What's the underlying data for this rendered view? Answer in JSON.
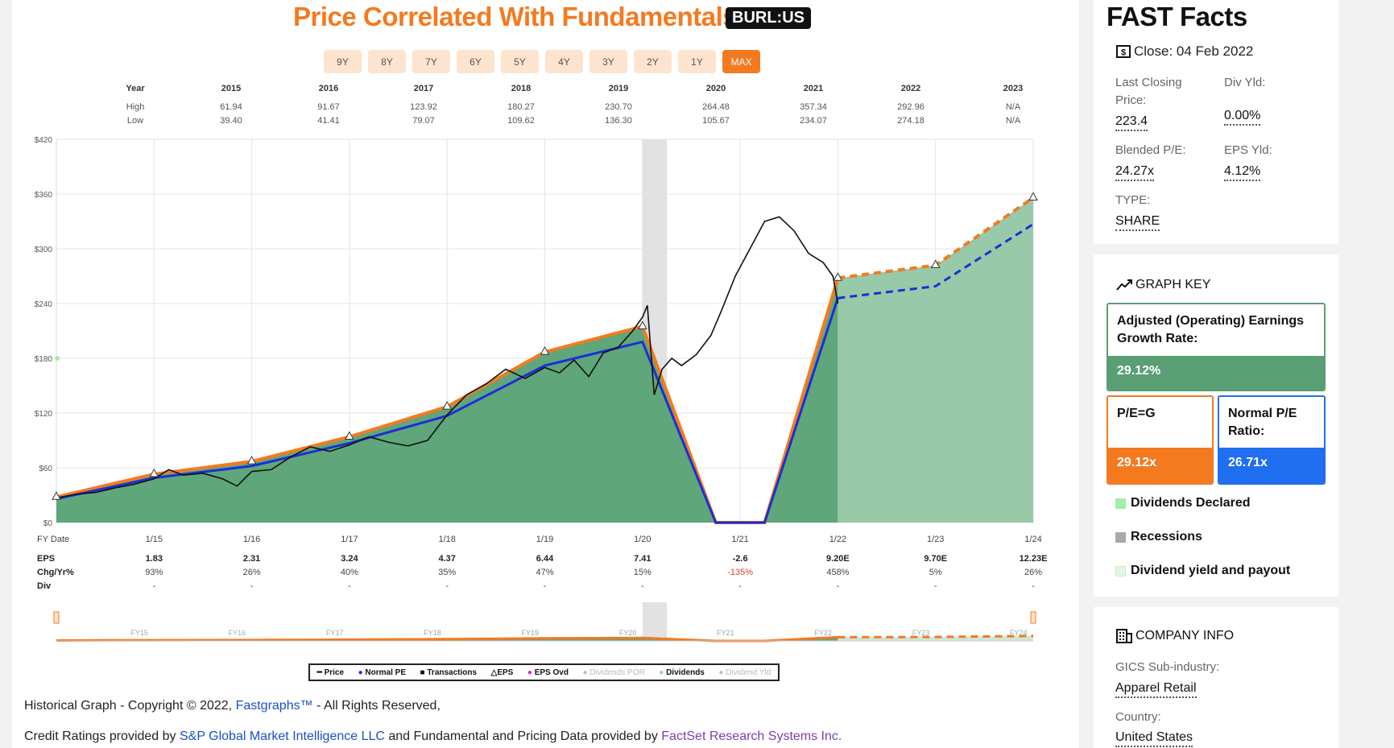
{
  "header": {
    "title": "Price Correlated With Fundamentals",
    "ticker": "BURL:US",
    "ranges": [
      "9Y",
      "8Y",
      "7Y",
      "6Y",
      "5Y",
      "4Y",
      "3Y",
      "2Y",
      "1Y",
      "MAX"
    ],
    "active_range": "MAX"
  },
  "year_table": {
    "head_label": "Year",
    "high_label": "High",
    "low_label": "Low",
    "years": [
      "2015",
      "2016",
      "2017",
      "2018",
      "2019",
      "2020",
      "2021",
      "2022",
      "2023"
    ],
    "high": [
      "61.94",
      "91.67",
      "123.92",
      "180.27",
      "230.70",
      "264.48",
      "357.34",
      "292.96",
      "N/A"
    ],
    "low": [
      "39.40",
      "41.41",
      "79.07",
      "109.62",
      "136.30",
      "105.67",
      "234.07",
      "274.18",
      "N/A"
    ]
  },
  "bottom_table": {
    "date_label": "FY Date",
    "eps_label": "EPS",
    "chg_label": "Chg/Yr%",
    "div_label": "Div",
    "dates": [
      "1/15",
      "1/16",
      "1/17",
      "1/18",
      "1/19",
      "1/20",
      "1/21",
      "1/22",
      "1/23",
      "1/24"
    ],
    "eps": [
      "1.83",
      "2.31",
      "3.24",
      "4.37",
      "6.44",
      "7.41",
      "-2.6",
      "9.20E",
      "9.70E",
      "12.23E"
    ],
    "chg": [
      "93%",
      "26%",
      "40%",
      "35%",
      "47%",
      "15%",
      "-135%",
      "458%",
      "5%",
      "26%"
    ],
    "div": [
      "-",
      "-",
      "-",
      "-",
      "-",
      "-",
      "-",
      "-",
      "-",
      "-"
    ]
  },
  "overview_labels": [
    "FY15",
    "FY16",
    "FY17",
    "FY18",
    "FY19",
    "FY20",
    "FY21",
    "FY22",
    "FY23",
    "FY24"
  ],
  "chart_data": {
    "type": "line",
    "yaxis_ticks": [
      "$0",
      "$60",
      "$120",
      "$180",
      "$240",
      "$300",
      "$360",
      "$420"
    ],
    "ylim": [
      0,
      420
    ],
    "xlim": [
      2014.0,
      2024.0
    ],
    "recession": [
      2020.0,
      2020.25
    ],
    "series": [
      {
        "name": "Normal PE",
        "color": "#1a2fd8",
        "x": [
          2014.0,
          2015.0,
          2016.0,
          2017.0,
          2018.0,
          2019.0,
          2020.0,
          2020.75,
          2021.25,
          2022.0,
          2023.0,
          2024.0
        ],
        "y": [
          26,
          49,
          62,
          87,
          117,
          172,
          198,
          0,
          0,
          246,
          259,
          327
        ],
        "estimate_from_index": 9
      },
      {
        "name": "EPS",
        "color": "#f47a20",
        "x": [
          2014.0,
          2015.0,
          2016.0,
          2017.0,
          2018.0,
          2019.0,
          2020.0,
          2020.75,
          2021.25,
          2022.0,
          2023.0,
          2024.0
        ],
        "y": [
          28,
          53,
          67,
          94,
          127,
          187,
          215,
          0,
          0,
          268,
          282,
          356
        ],
        "estimate_from_index": 9
      },
      {
        "name": "Price",
        "color": "#111111",
        "x": [
          2014.0,
          2014.2,
          2014.4,
          2014.6,
          2014.8,
          2015.0,
          2015.15,
          2015.3,
          2015.5,
          2015.7,
          2015.85,
          2016.0,
          2016.2,
          2016.4,
          2016.6,
          2016.8,
          2017.0,
          2017.2,
          2017.4,
          2017.6,
          2017.8,
          2018.0,
          2018.2,
          2018.4,
          2018.6,
          2018.8,
          2019.0,
          2019.15,
          2019.3,
          2019.45,
          2019.6,
          2019.75,
          2019.9,
          2020.0,
          2020.05,
          2020.12,
          2020.2,
          2020.3,
          2020.4,
          2020.55,
          2020.7,
          2020.8,
          2020.95,
          2021.1,
          2021.25,
          2021.4,
          2021.55,
          2021.7,
          2021.85,
          2021.95,
          2022.0
        ],
        "y": [
          27,
          31,
          33,
          38,
          42,
          48,
          58,
          52,
          54,
          48,
          40,
          56,
          58,
          72,
          83,
          78,
          85,
          94,
          88,
          84,
          90,
          118,
          140,
          152,
          168,
          158,
          170,
          164,
          178,
          160,
          186,
          192,
          210,
          225,
          238,
          140,
          168,
          180,
          172,
          184,
          205,
          230,
          270,
          300,
          330,
          335,
          320,
          295,
          285,
          270,
          240
        ]
      }
    ],
    "estimate_region_from": 2022.0,
    "legend": [
      "Price",
      "Normal PE",
      "Transactions",
      "EPS",
      "EPS Ovd",
      "Dividends POR",
      "Dividends",
      "Dividend Yld"
    ]
  },
  "legend_items": [
    "Price",
    "Normal PE",
    "Transactions",
    "EPS",
    "EPS Ovd",
    "Dividends POR",
    "Dividends",
    "Dividend Yld"
  ],
  "footer": {
    "line1_pre": "Historical Graph - Copyright © 2022, ",
    "line1_link": "Fastgraphs™",
    "line1_post": " - All Rights Reserved,",
    "line2_pre": "Credit Ratings provided by ",
    "line2_link1": "S&P Global Market Intelligence LLC",
    "line2_mid": " and Fundamental and Pricing Data provided by ",
    "line2_link2": "FactSet Research Systems Inc."
  },
  "fast_facts": {
    "title": "FAST Facts",
    "close": "Close: 04 Feb 2022",
    "last_price_label": "Last Closing Price:",
    "last_price": "223.4",
    "div_yld_label": "Div Yld:",
    "div_yld": "0.00%",
    "blended_pe_label": "Blended P/E:",
    "blended_pe": "24.27x",
    "eps_yld_label": "EPS Yld:",
    "eps_yld": "4.12%",
    "type_label": "TYPE:",
    "type": "SHARE"
  },
  "graph_key": {
    "title": "GRAPH KEY",
    "growth_label": "Adjusted (Operating) Earnings Growth Rate:",
    "growth_value": "29.12%",
    "peg_label": "P/E=G",
    "peg_value": "29.12x",
    "normal_pe_label": "Normal P/E Ratio:",
    "normal_pe_value": "26.71x",
    "dividends_declared": "Dividends Declared",
    "recessions": "Recessions",
    "div_yield_payout": "Dividend yield and payout",
    "colors": {
      "growth": "#5a9e74",
      "peg": "#f47a20",
      "normal": "#1f6ff0"
    }
  },
  "company_info": {
    "title": "COMPANY INFO",
    "sub_industry_label": "GICS Sub-industry:",
    "sub_industry": "Apparel Retail",
    "country_label": "Country:",
    "country": "United States"
  }
}
